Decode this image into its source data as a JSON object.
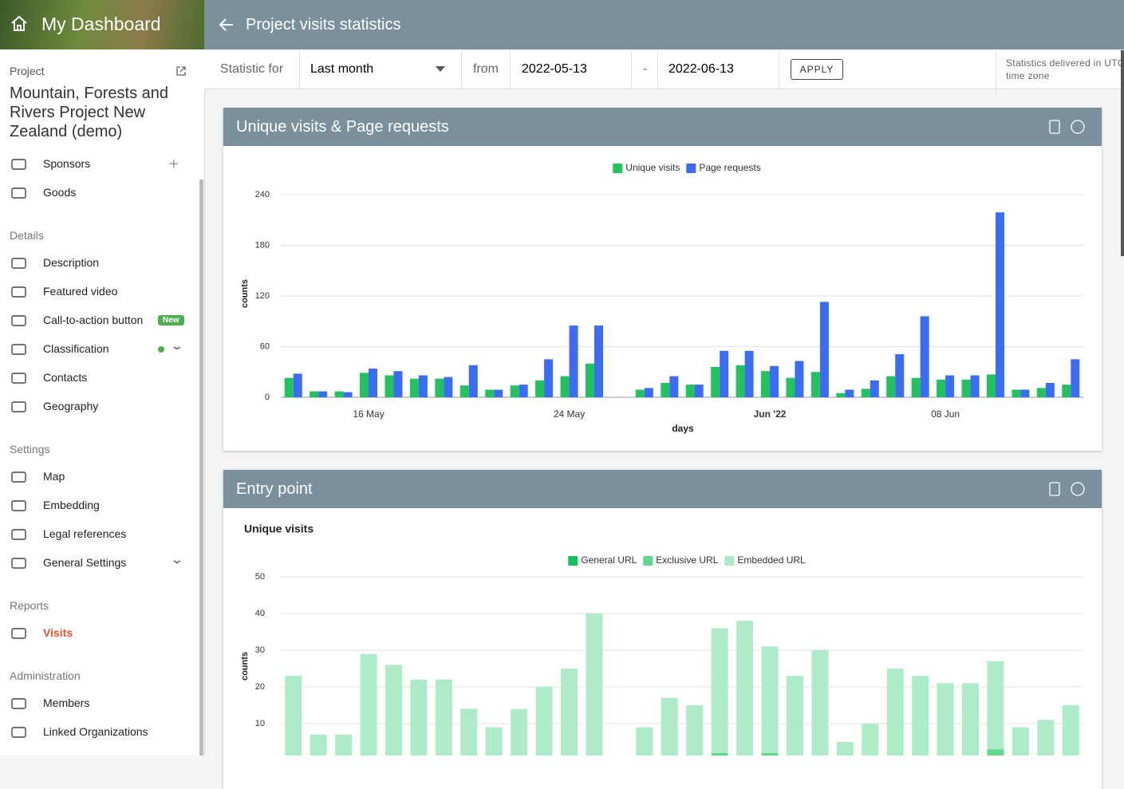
{
  "sidebar": {
    "title": "My Dashboard",
    "project_label": "Project",
    "project_name": "Mountain, Forests and Rivers Project New Zealand (demo)",
    "top_items": [
      "Sponsors",
      "Goods"
    ],
    "badge": "New",
    "sections": [
      {
        "title": "Details",
        "items": [
          "Description",
          "Featured video",
          "Call-to-action button",
          "Classification",
          "Contacts",
          "Geography"
        ]
      },
      {
        "title": "Settings",
        "items": [
          "Map",
          "Embedding",
          "Legal references",
          "General Settings"
        ]
      },
      {
        "title": "Reports",
        "items": [
          "Visits"
        ]
      },
      {
        "title": "Administration",
        "items": [
          "Members",
          "Linked Organizations"
        ]
      }
    ]
  },
  "header": {
    "title": "Project visits statistics"
  },
  "filter": {
    "label": "Statistic for",
    "period": "Last month",
    "from_label": "from",
    "from": "2022-05-13",
    "separator": "-",
    "to": "2022-06-13",
    "apply": "APPLY",
    "note": "Statistics delivered in UTC time zone"
  },
  "chart_data": [
    {
      "type": "bar",
      "title": "Unique visits & Page requests",
      "xlabel": "days",
      "ylabel": "counts",
      "categories": [
        null,
        null,
        null,
        "16 May",
        null,
        null,
        null,
        null,
        null,
        null,
        null,
        "24 May",
        null,
        null,
        null,
        null,
        null,
        null,
        null,
        "Jun '22",
        null,
        null,
        null,
        null,
        null,
        null,
        "08 Jun",
        null,
        null,
        null,
        null,
        null
      ],
      "series": [
        {
          "name": "Unique visits",
          "color": "#22c35e",
          "values": [
            23,
            7,
            7,
            29,
            26,
            22,
            22,
            14,
            9,
            14,
            20,
            25,
            40,
            null,
            9,
            17,
            15,
            36,
            38,
            31,
            23,
            30,
            5,
            10,
            25,
            23,
            21,
            21,
            27,
            9,
            11,
            15
          ]
        },
        {
          "name": "Page requests",
          "color": "#3d6cf4",
          "values": [
            28,
            7,
            6,
            34,
            31,
            26,
            24,
            38,
            9,
            15,
            45,
            85,
            85,
            null,
            11,
            25,
            15,
            55,
            55,
            37,
            43,
            113,
            9,
            20,
            51,
            96,
            26,
            26,
            219,
            9,
            17,
            45
          ]
        }
      ],
      "ylim": [
        0,
        240
      ],
      "yticks": [
        0,
        60,
        120,
        180,
        240
      ],
      "grid": true,
      "stacked": false
    },
    {
      "type": "bar",
      "title": "Entry point",
      "subtitle": "Unique visits",
      "ylabel": "counts",
      "series": [
        {
          "name": "General URL",
          "color": "#14c05a",
          "values": [
            0,
            0,
            0,
            0,
            0,
            1,
            0,
            0,
            0,
            0,
            0,
            0,
            0,
            null,
            0,
            0,
            0,
            0,
            0,
            0,
            0,
            0,
            0,
            0,
            0,
            0,
            0,
            0,
            0,
            0,
            0,
            0
          ]
        },
        {
          "name": "Exclusive URL",
          "color": "#5ed88e",
          "values": [
            0,
            0,
            0,
            1,
            0,
            0,
            0,
            0,
            0,
            0,
            0,
            0,
            0,
            null,
            0,
            0,
            0,
            2,
            0,
            2,
            0,
            1,
            0,
            0,
            0,
            0,
            0,
            0,
            3,
            0,
            0,
            0
          ]
        },
        {
          "name": "Embedded URL",
          "color": "#aeebc8",
          "values": [
            23,
            7,
            7,
            28,
            26,
            21,
            22,
            14,
            9,
            14,
            20,
            25,
            40,
            null,
            9,
            17,
            15,
            34,
            38,
            29,
            23,
            29,
            5,
            10,
            25,
            23,
            21,
            21,
            24,
            9,
            11,
            15
          ]
        }
      ],
      "ylim": [
        0,
        50
      ],
      "yticks": [
        10,
        20,
        30,
        40,
        50
      ],
      "grid": true,
      "stacked": true
    }
  ]
}
